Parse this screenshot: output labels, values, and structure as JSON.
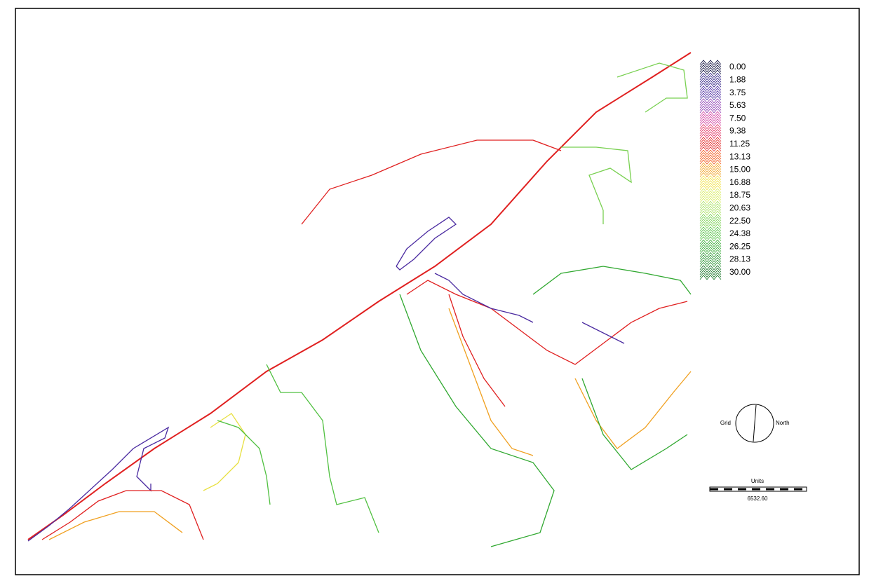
{
  "legend": {
    "labels": [
      "0.00",
      "1.88",
      "3.75",
      "5.63",
      "7.50",
      "9.38",
      "11.25",
      "13.13",
      "15.00",
      "16.88",
      "18.75",
      "20.63",
      "22.50",
      "24.38",
      "26.25",
      "28.13",
      "30.00"
    ],
    "colors": [
      "#000033",
      "#2a1a80",
      "#4a2aa0",
      "#8a3ab0",
      "#d040a0",
      "#e03060",
      "#e02020",
      "#f05010",
      "#f0a020",
      "#f0e040",
      "#d8ec60",
      "#a8e060",
      "#78d050",
      "#50c040",
      "#30a830",
      "#20902a",
      "#107020"
    ]
  },
  "compass": {
    "left": "Grid",
    "right": "North"
  },
  "scale": {
    "title": "Units",
    "value": "6532.60"
  }
}
